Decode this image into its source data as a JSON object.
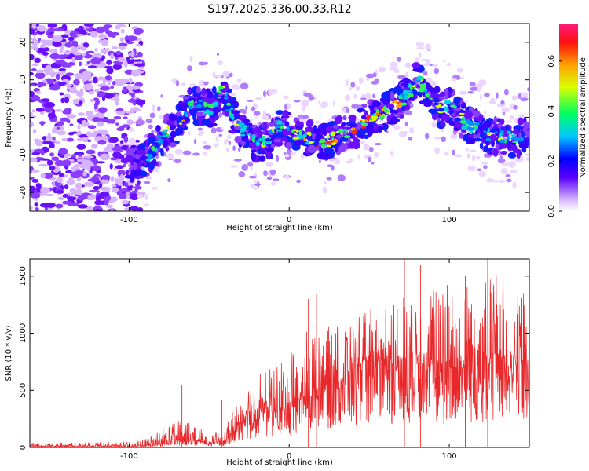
{
  "title": "S197.2025.336.00.33.R12",
  "colors": {
    "snr_line": "#e8282a",
    "axis": "#000000",
    "spectro_low": "#f2ddff",
    "spectro_mid": "#6a10ff",
    "spectro_high": "#ff1a4a"
  },
  "chart_data": [
    {
      "type": "heatmap",
      "name": "spectrogram",
      "xlabel": "Height of straight line (km)",
      "ylabel": "Frequency (Hz)",
      "xlim": [
        -162,
        150
      ],
      "ylim": [
        -25,
        25
      ],
      "xticks": [
        -100,
        0,
        100
      ],
      "xtick_labels": [
        "-100",
        "0",
        "100"
      ],
      "yticks": [
        -20,
        -10,
        0,
        10,
        20
      ],
      "ytick_labels": [
        "-20",
        "-10",
        "0",
        "10",
        "20"
      ],
      "ridge": {
        "x": [
          -100,
          -92,
          -85,
          -78,
          -70,
          -62,
          -55,
          -48,
          -42,
          -35,
          -28,
          -20,
          -12,
          -5,
          2,
          10,
          18,
          26,
          34,
          42,
          50,
          58,
          65,
          72,
          80,
          88,
          95,
          102,
          110,
          118,
          126,
          134,
          142,
          148
        ],
        "y": [
          -12,
          -12,
          -9,
          -5,
          -2,
          3,
          3,
          2,
          8,
          0,
          -4,
          -7,
          -6,
          -2,
          -4,
          -5,
          -7,
          -6,
          -4,
          -3,
          0,
          1,
          3,
          5,
          10,
          6,
          2,
          3,
          -2,
          -3,
          -5,
          -5,
          -6,
          -5
        ]
      },
      "colorbar": {
        "label": "Normalized spectral amplitude",
        "range": [
          0,
          0.75
        ],
        "ticks": [
          0.0,
          0.2,
          0.4,
          0.6
        ],
        "tick_labels": [
          "0.0",
          "0.2",
          "0.4",
          "0.6"
        ]
      }
    },
    {
      "type": "line",
      "name": "snr",
      "xlabel": "Height of straight line (km)",
      "ylabel": "SNR (10 * v/v)",
      "xlim": [
        -162,
        150
      ],
      "ylim": [
        0,
        1650
      ],
      "xticks": [
        -100,
        0,
        100
      ],
      "xtick_labels": [
        "-100",
        "0",
        "100"
      ],
      "yticks": [
        0,
        500,
        1000,
        1500
      ],
      "ytick_labels": [
        "0",
        "500",
        "1000",
        "1500"
      ],
      "envelope": {
        "x": [
          -162,
          -100,
          -90,
          -80,
          -70,
          -60,
          -50,
          -40,
          -30,
          -20,
          -10,
          0,
          10,
          20,
          30,
          40,
          50,
          60,
          70,
          80,
          90,
          100,
          110,
          120,
          130,
          140,
          150
        ],
        "base": [
          10,
          12,
          15,
          30,
          60,
          60,
          30,
          60,
          200,
          300,
          300,
          330,
          440,
          520,
          560,
          650,
          700,
          700,
          660,
          720,
          650,
          660,
          700,
          720,
          730,
          700,
          690
        ],
        "peak": [
          40,
          50,
          70,
          170,
          250,
          240,
          110,
          170,
          480,
          650,
          700,
          860,
          1020,
          1050,
          1080,
          1100,
          1220,
          1300,
          1350,
          1500,
          1450,
          1460,
          1480,
          1520,
          1560,
          1500,
          1400
        ]
      },
      "spikes": [
        {
          "x": -67,
          "y": 550
        },
        {
          "x": -42,
          "y": 420
        },
        {
          "x": 12,
          "y": 1300
        },
        {
          "x": 17,
          "y": 1340
        },
        {
          "x": 72,
          "y": 1650
        },
        {
          "x": 82,
          "y": 1600
        },
        {
          "x": 110,
          "y": 1500
        },
        {
          "x": 124,
          "y": 1650
        },
        {
          "x": 138,
          "y": 1520
        }
      ]
    }
  ]
}
